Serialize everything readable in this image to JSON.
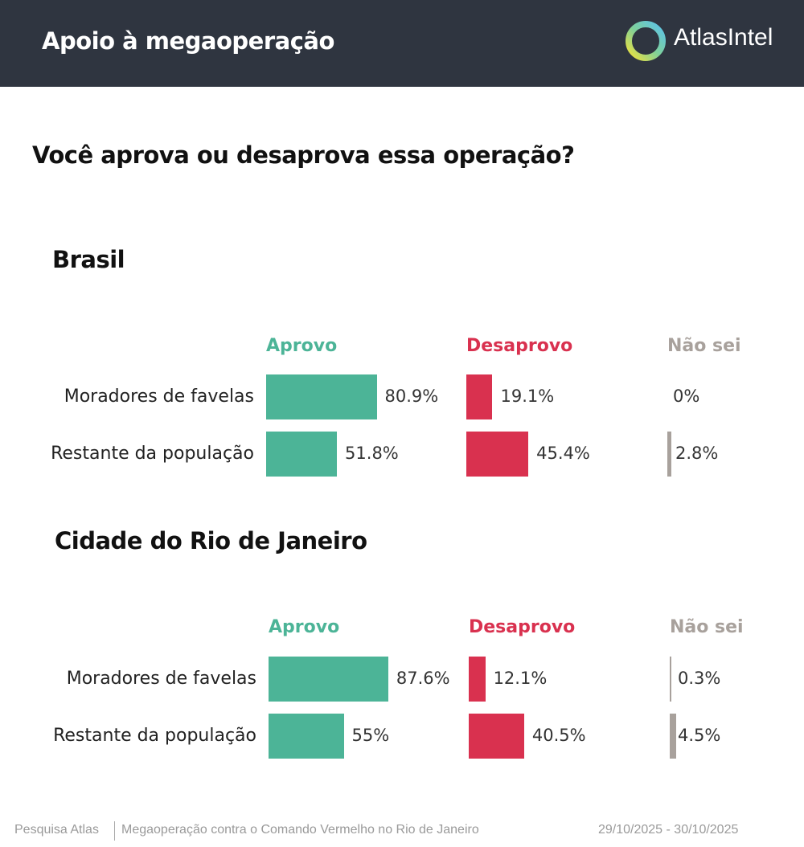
{
  "header": {
    "title": "Apoio à megaoperação",
    "logo_text": "AtlasIntel"
  },
  "question": "Você aprova ou desaprova essa operação?",
  "colors": {
    "aprovo": "#4cb497",
    "desaprovo": "#d9314f",
    "nao_sei": "#a8a19c",
    "header_bg": "#2f3540"
  },
  "chart_data": [
    {
      "type": "bar",
      "title": "Brasil",
      "columns": [
        "Aprovo",
        "Desaprovo",
        "Não sei"
      ],
      "categories": [
        "Moradores de favelas",
        "Restante da população"
      ],
      "series": [
        {
          "name": "Aprovo",
          "values": [
            80.9,
            51.8
          ],
          "labels": [
            "80.9%",
            "51.8%"
          ]
        },
        {
          "name": "Desaprovo",
          "values": [
            19.1,
            45.4
          ],
          "labels": [
            "19.1%",
            "45.4%"
          ]
        },
        {
          "name": "Não sei",
          "values": [
            0,
            2.8
          ],
          "labels": [
            "0%",
            "2.8%"
          ]
        }
      ]
    },
    {
      "type": "bar",
      "title": "Cidade do Rio de Janeiro",
      "columns": [
        "Aprovo",
        "Desaprovo",
        "Não sei"
      ],
      "categories": [
        "Moradores de favelas",
        "Restante da população"
      ],
      "series": [
        {
          "name": "Aprovo",
          "values": [
            87.6,
            55
          ],
          "labels": [
            "87.6%",
            "55%"
          ]
        },
        {
          "name": "Desaprovo",
          "values": [
            12.1,
            40.5
          ],
          "labels": [
            "12.1%",
            "40.5%"
          ]
        },
        {
          "name": "Não sei",
          "values": [
            0.3,
            4.5
          ],
          "labels": [
            "0.3%",
            "4.5%"
          ]
        }
      ]
    }
  ],
  "footer": {
    "source": "Pesquisa Atlas",
    "description": "Megaoperação contra o Comando Vermelho no Rio de Janeiro",
    "dates": "29/10/2025 - 30/10/2025"
  }
}
